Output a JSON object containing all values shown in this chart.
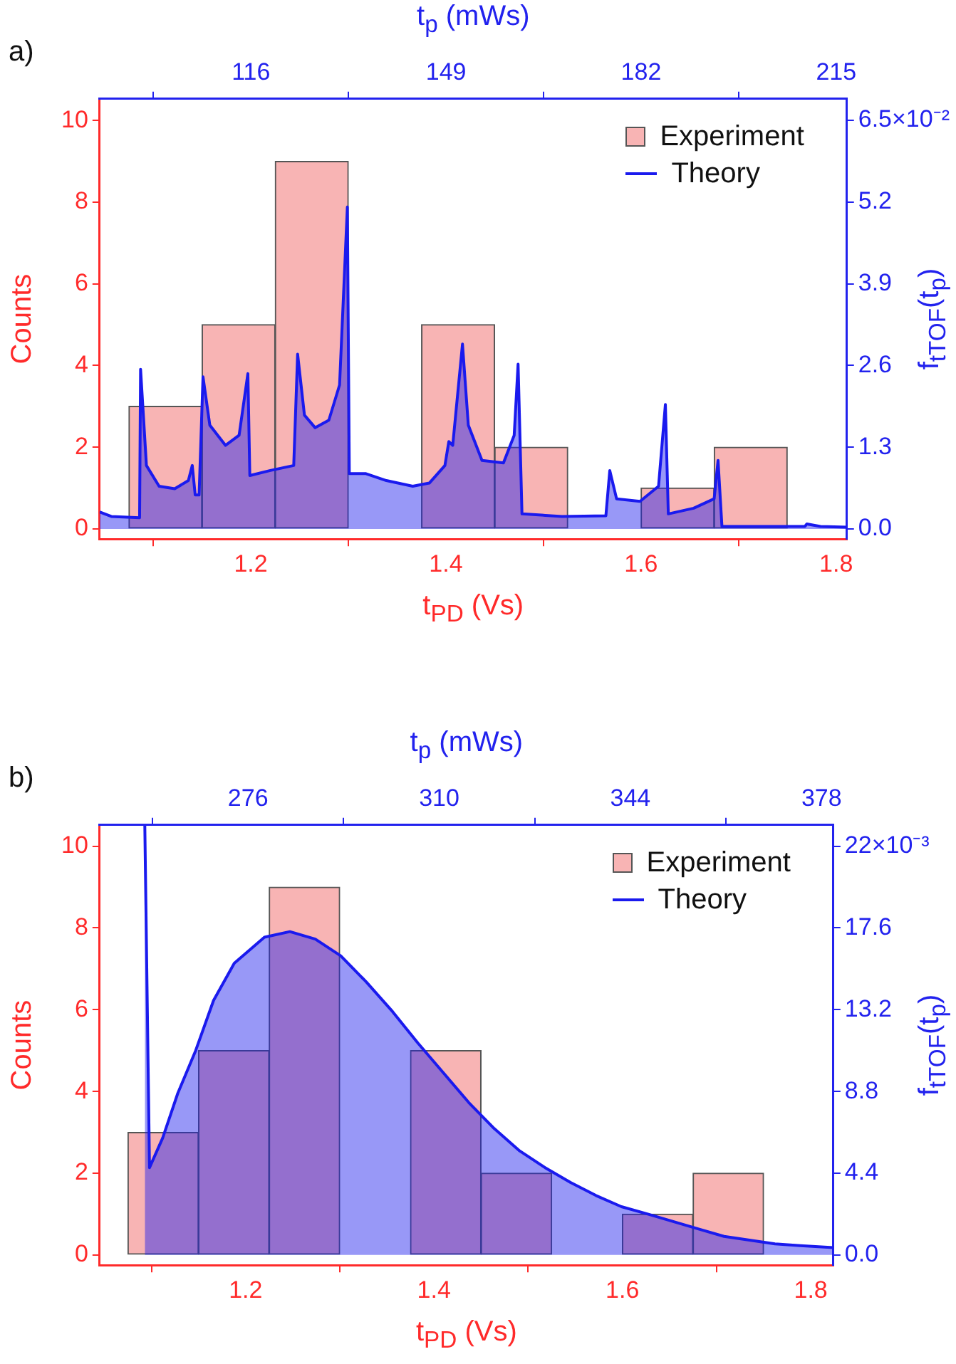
{
  "chart_data": [
    {
      "type": "histogram",
      "title": "a)",
      "xlabel": "t$_{PD}$ (Vs)",
      "ylabel": "Counts",
      "x2label": "t$_{p}$ (mWs)",
      "y2label": "f$_{tTOF}$(t$_{p}$)",
      "bins": [
        1.075,
        1.15,
        1.225,
        1.3,
        1.375,
        1.45,
        1.525,
        1.6,
        1.675,
        1.75
      ],
      "series": [
        {
          "name": "Experiment",
          "color": "#f8b4b4",
          "values": [
            3,
            5,
            9,
            0,
            5,
            2,
            0,
            1,
            2
          ]
        },
        {
          "name": "Theory",
          "type": "area",
          "axis": "y2",
          "color": "#1a1aee",
          "x": [
            1.045,
            1.057,
            1.086,
            1.087,
            1.093,
            1.106,
            1.122,
            1.136,
            1.14,
            1.143,
            1.147,
            1.151,
            1.158,
            1.174,
            1.188,
            1.197,
            1.199,
            1.22,
            1.244,
            1.248,
            1.255,
            1.266,
            1.28,
            1.291,
            1.299,
            1.301,
            1.318,
            1.339,
            1.366,
            1.383,
            1.399,
            1.403,
            1.407,
            1.417,
            1.423,
            1.437,
            1.459,
            1.47,
            1.474,
            1.478,
            1.519,
            1.564,
            1.568,
            1.575,
            1.599,
            1.618,
            1.625,
            1.628,
            1.654,
            1.675,
            1.679,
            1.683,
            1.768,
            1.77,
            1.784,
            1.811
          ],
          "values": [
            0.27,
            0.2,
            0.18,
            2.54,
            1.01,
            0.68,
            0.64,
            0.77,
            1.01,
            0.54,
            0.54,
            2.42,
            1.65,
            1.33,
            1.49,
            2.47,
            0.85,
            0.93,
            1.01,
            2.78,
            1.81,
            1.61,
            1.73,
            2.29,
            5.12,
            0.88,
            0.88,
            0.77,
            0.68,
            0.73,
            1.01,
            1.39,
            1.33,
            2.94,
            1.65,
            1.09,
            1.05,
            1.49,
            2.62,
            0.24,
            0.2,
            0.21,
            0.93,
            0.48,
            0.44,
            0.68,
            1.98,
            0.24,
            0.33,
            0.48,
            1.09,
            0.04,
            0.04,
            0.08,
            0.04,
            0.03
          ]
        }
      ],
      "xlim": [
        1.045,
        1.811
      ],
      "xticks": [
        1.2,
        1.4,
        1.6,
        1.8
      ],
      "ylim": [
        -0.25,
        10.53
      ],
      "yticks": [
        0,
        2,
        4,
        6,
        8,
        10
      ],
      "x2lim": [
        90.4,
        216.8
      ],
      "x2ticks": [
        116,
        149,
        182,
        215
      ],
      "y2lim": [
        -0.16,
        6.84
      ],
      "y2ticks": [
        {
          "value": 0,
          "label": "0.0"
        },
        {
          "value": 1.3,
          "label": "1.3"
        },
        {
          "value": 2.6,
          "label": "2.6"
        },
        {
          "value": 3.9,
          "label": "3.9"
        },
        {
          "value": 5.2,
          "label": "5.2"
        },
        {
          "value": 6.5,
          "label": "6.5"
        }
      ],
      "annotations": [
        "×10⁻²"
      ],
      "legend": "top right",
      "grid": false
    },
    {
      "type": "histogram",
      "title": "b)",
      "xlabel": "t$_{PD}$ (Vs)",
      "ylabel": "Counts",
      "x2label": "t$_{p}$ (mWs)",
      "y2label": "f$_{tTOF}$(t$_{p}$)",
      "bins": [
        1.075,
        1.15,
        1.225,
        1.3,
        1.375,
        1.45,
        1.525,
        1.6,
        1.675,
        1.75
      ],
      "series": [
        {
          "name": "Experiment",
          "color": "#f8b4b4",
          "values": [
            3,
            5,
            9,
            0,
            5,
            2,
            0,
            1,
            2
          ]
        },
        {
          "name": "Theory",
          "type": "area",
          "axis": "y2",
          "color": "#1a1aee",
          "x": [
            1.093,
            1.098,
            1.112,
            1.128,
            1.147,
            1.166,
            1.188,
            1.22,
            1.247,
            1.274,
            1.301,
            1.328,
            1.356,
            1.383,
            1.41,
            1.437,
            1.464,
            1.491,
            1.518,
            1.545,
            1.572,
            1.599,
            1.627,
            1.654,
            1.681,
            1.708,
            1.735,
            1.762,
            1.789,
            1.824
          ],
          "values": [
            23.1,
            4.7,
            6.3,
            8.7,
            11,
            13.7,
            15.7,
            17.1,
            17.4,
            17,
            16.1,
            14.7,
            13.1,
            11.4,
            9.8,
            8.2,
            6.8,
            5.6,
            4.7,
            3.9,
            3.2,
            2.6,
            2.2,
            1.8,
            1.4,
            1,
            0.8,
            0.6,
            0.5,
            0.4
          ]
        }
      ],
      "xlim": [
        1.045,
        1.824
      ],
      "xticks": [
        1.2,
        1.4,
        1.6,
        1.8
      ],
      "ylim": [
        -0.25,
        10.52
      ],
      "yticks": [
        0,
        2,
        4,
        6,
        8,
        10
      ],
      "x2lim": [
        249.6,
        380.1
      ],
      "x2ticks": [
        276,
        310,
        344,
        378
      ],
      "y2lim": [
        -0.55,
        23.14
      ],
      "y2ticks": [
        {
          "value": 0,
          "label": "0.0"
        },
        {
          "value": 4.4,
          "label": "4.4"
        },
        {
          "value": 8.8,
          "label": "8.8"
        },
        {
          "value": 13.2,
          "label": "13.2"
        },
        {
          "value": 17.6,
          "label": "17.6"
        },
        {
          "value": 22,
          "label": "22"
        }
      ],
      "annotations": [
        "×10⁻³"
      ],
      "legend": "top right",
      "grid": false
    }
  ]
}
